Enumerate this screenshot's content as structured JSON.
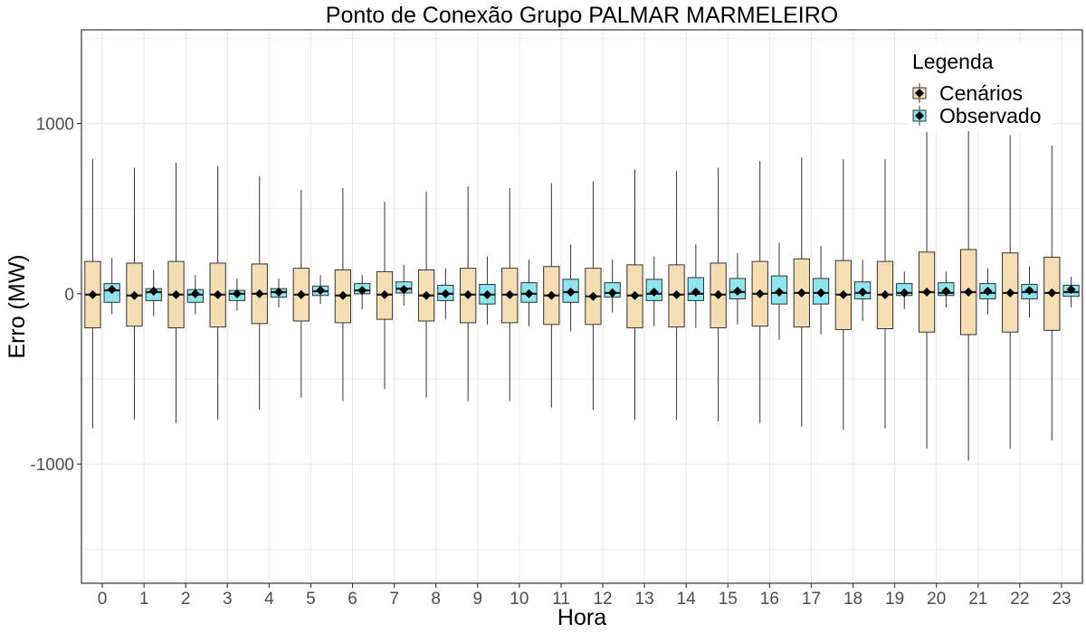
{
  "chart_data": {
    "type": "boxplot",
    "title": "Ponto de Conexão Grupo PALMAR MARMELEIRO",
    "xlabel": "Hora",
    "ylabel": "Erro (MW)",
    "ylim": [
      -1700,
      1550
    ],
    "yticks": [
      -1000,
      0,
      1000
    ],
    "grid": true,
    "legend": {
      "title": "Legenda",
      "position": "top-right"
    },
    "categories": [
      "0",
      "1",
      "2",
      "3",
      "4",
      "5",
      "6",
      "7",
      "8",
      "9",
      "10",
      "11",
      "12",
      "13",
      "14",
      "15",
      "16",
      "17",
      "18",
      "19",
      "20",
      "21",
      "22",
      "23"
    ],
    "series": [
      {
        "name": "Cenários",
        "color": "#f5deb3",
        "boxes": [
          {
            "min": -790,
            "q1": -200,
            "median": -5,
            "q3": 190,
            "max": 790,
            "mean": -5
          },
          {
            "min": -740,
            "q1": -190,
            "median": -10,
            "q3": 180,
            "max": 740,
            "mean": -10
          },
          {
            "min": -760,
            "q1": -200,
            "median": -5,
            "q3": 190,
            "max": 770,
            "mean": -5
          },
          {
            "min": -740,
            "q1": -195,
            "median": -5,
            "q3": 180,
            "max": 750,
            "mean": -5
          },
          {
            "min": -680,
            "q1": -175,
            "median": 0,
            "q3": 175,
            "max": 690,
            "mean": 0
          },
          {
            "min": -610,
            "q1": -160,
            "median": -5,
            "q3": 150,
            "max": 610,
            "mean": -5
          },
          {
            "min": -630,
            "q1": -170,
            "median": -10,
            "q3": 140,
            "max": 620,
            "mean": -10
          },
          {
            "min": -560,
            "q1": -150,
            "median": -5,
            "q3": 130,
            "max": 540,
            "mean": -5
          },
          {
            "min": -610,
            "q1": -160,
            "median": -10,
            "q3": 140,
            "max": 600,
            "mean": -10
          },
          {
            "min": -630,
            "q1": -170,
            "median": -5,
            "q3": 150,
            "max": 630,
            "mean": -5
          },
          {
            "min": -630,
            "q1": -170,
            "median": -5,
            "q3": 150,
            "max": 620,
            "mean": -5
          },
          {
            "min": -670,
            "q1": -180,
            "median": -10,
            "q3": 160,
            "max": 650,
            "mean": -10
          },
          {
            "min": -680,
            "q1": -180,
            "median": -15,
            "q3": 150,
            "max": 660,
            "mean": -15
          },
          {
            "min": -740,
            "q1": -200,
            "median": -10,
            "q3": 170,
            "max": 730,
            "mean": -10
          },
          {
            "min": -740,
            "q1": -195,
            "median": -5,
            "q3": 170,
            "max": 720,
            "mean": -5
          },
          {
            "min": -750,
            "q1": -200,
            "median": -5,
            "q3": 180,
            "max": 740,
            "mean": -5
          },
          {
            "min": -760,
            "q1": -190,
            "median": 0,
            "q3": 190,
            "max": 780,
            "mean": 0
          },
          {
            "min": -780,
            "q1": -195,
            "median": 5,
            "q3": 205,
            "max": 800,
            "mean": 5
          },
          {
            "min": -800,
            "q1": -210,
            "median": -5,
            "q3": 195,
            "max": 790,
            "mean": -5
          },
          {
            "min": -790,
            "q1": -205,
            "median": -5,
            "q3": 190,
            "max": 790,
            "mean": -5
          },
          {
            "min": -910,
            "q1": -225,
            "median": 10,
            "q3": 245,
            "max": 950,
            "mean": 10
          },
          {
            "min": -980,
            "q1": -240,
            "median": 10,
            "q3": 260,
            "max": 990,
            "mean": 10
          },
          {
            "min": -910,
            "q1": -225,
            "median": 5,
            "q3": 240,
            "max": 930,
            "mean": 5
          },
          {
            "min": -860,
            "q1": -215,
            "median": 5,
            "q3": 215,
            "max": 870,
            "mean": 5
          }
        ]
      },
      {
        "name": "Observado",
        "color": "#8ee5ee",
        "boxes": [
          {
            "min": -120,
            "q1": -50,
            "median": 20,
            "q3": 60,
            "max": 210,
            "mean": 25
          },
          {
            "min": -130,
            "q1": -40,
            "median": 10,
            "q3": 30,
            "max": 140,
            "mean": 15
          },
          {
            "min": -120,
            "q1": -50,
            "median": -5,
            "q3": 25,
            "max": 110,
            "mean": 0
          },
          {
            "min": -100,
            "q1": -40,
            "median": 0,
            "q3": 20,
            "max": 90,
            "mean": 0
          },
          {
            "min": -80,
            "q1": -20,
            "median": 10,
            "q3": 30,
            "max": 90,
            "mean": 10
          },
          {
            "min": -60,
            "q1": -10,
            "median": 15,
            "q3": 45,
            "max": 110,
            "mean": 20
          },
          {
            "min": -90,
            "q1": 0,
            "median": 20,
            "q3": 60,
            "max": 110,
            "mean": 20
          },
          {
            "min": -70,
            "q1": 5,
            "median": 30,
            "q3": 70,
            "max": 170,
            "mean": 25
          },
          {
            "min": -150,
            "q1": -40,
            "median": 0,
            "q3": 50,
            "max": 150,
            "mean": 0
          },
          {
            "min": -180,
            "q1": -60,
            "median": -5,
            "q3": 55,
            "max": 220,
            "mean": -5
          },
          {
            "min": -190,
            "q1": -50,
            "median": 0,
            "q3": 65,
            "max": 200,
            "mean": 0
          },
          {
            "min": -220,
            "q1": -50,
            "median": 10,
            "q3": 85,
            "max": 290,
            "mean": 10
          },
          {
            "min": -110,
            "q1": -20,
            "median": 5,
            "q3": 65,
            "max": 200,
            "mean": 5
          },
          {
            "min": -190,
            "q1": -40,
            "median": 0,
            "q3": 85,
            "max": 220,
            "mean": 10
          },
          {
            "min": -200,
            "q1": -40,
            "median": 0,
            "q3": 95,
            "max": 290,
            "mean": 10
          },
          {
            "min": -180,
            "q1": -30,
            "median": 10,
            "q3": 90,
            "max": 240,
            "mean": 15
          },
          {
            "min": -270,
            "q1": -60,
            "median": 5,
            "q3": 105,
            "max": 300,
            "mean": 10
          },
          {
            "min": -240,
            "q1": -60,
            "median": 5,
            "q3": 90,
            "max": 280,
            "mean": 5
          },
          {
            "min": -160,
            "q1": -30,
            "median": 5,
            "q3": 70,
            "max": 200,
            "mean": 10
          },
          {
            "min": -90,
            "q1": -10,
            "median": 5,
            "q3": 60,
            "max": 130,
            "mean": 5
          },
          {
            "min": -80,
            "q1": -10,
            "median": 5,
            "q3": 65,
            "max": 130,
            "mean": 15
          },
          {
            "min": -120,
            "q1": -30,
            "median": 5,
            "q3": 60,
            "max": 150,
            "mean": 15
          },
          {
            "min": -140,
            "q1": -30,
            "median": 10,
            "q3": 55,
            "max": 160,
            "mean": 20
          },
          {
            "min": -80,
            "q1": -15,
            "median": 10,
            "q3": 50,
            "max": 100,
            "mean": 25
          }
        ]
      }
    ]
  }
}
